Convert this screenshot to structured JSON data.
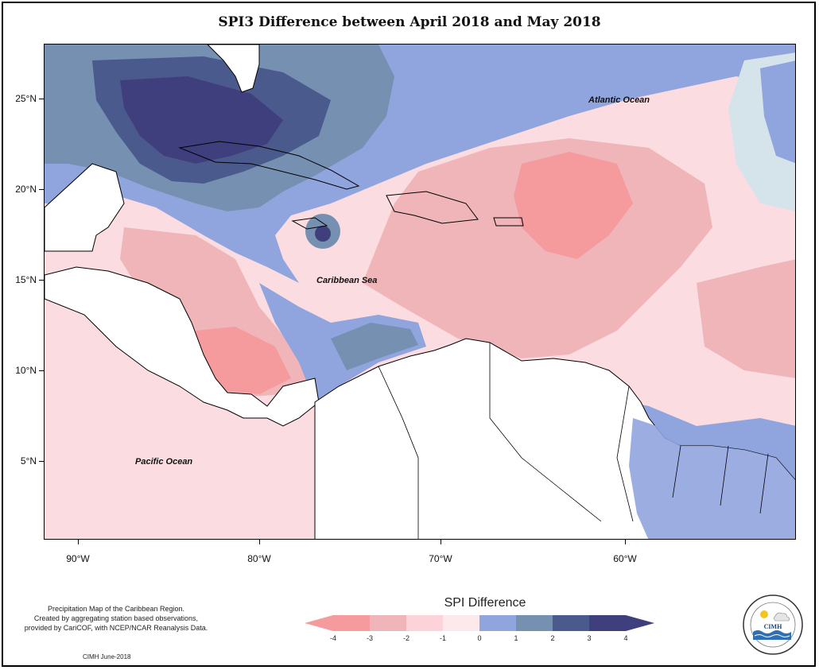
{
  "title": "SPI3 Difference between April 2018 and May 2018",
  "axes": {
    "y_ticks": [
      "25°N",
      "20°N",
      "15°N",
      "10°N",
      "5°N"
    ],
    "x_ticks": [
      "90°W",
      "80°W",
      "70°W",
      "60°W"
    ]
  },
  "places": {
    "atlantic": "Atlantic Ocean",
    "caribbean": "Caribbean Sea",
    "pacific": "Pacific Ocean"
  },
  "legend": {
    "title": "SPI Difference",
    "labels": [
      "-4",
      "-3",
      "-2",
      "-1",
      "0",
      "1",
      "2",
      "3",
      "4"
    ],
    "colors": [
      "#f59b9e",
      "#efb5b9",
      "#fbd3d8",
      "#fde8ec",
      "#d5e4ea",
      "#90a4de",
      "#7690b2",
      "#4b5a8c",
      "#3f3f7e"
    ]
  },
  "note": {
    "line1": "Precipitation Map of the Caribbean Region.",
    "line2": "Created by aggregating station based observations,",
    "line3": "provided by CariCOF, with NCEP/NCAR Reanalysis Data."
  },
  "credit": "CIMH June-2018",
  "logo": {
    "name": "CIMH",
    "ring_text": "Caribbean Institute for Meteorology and Hydrology"
  }
}
